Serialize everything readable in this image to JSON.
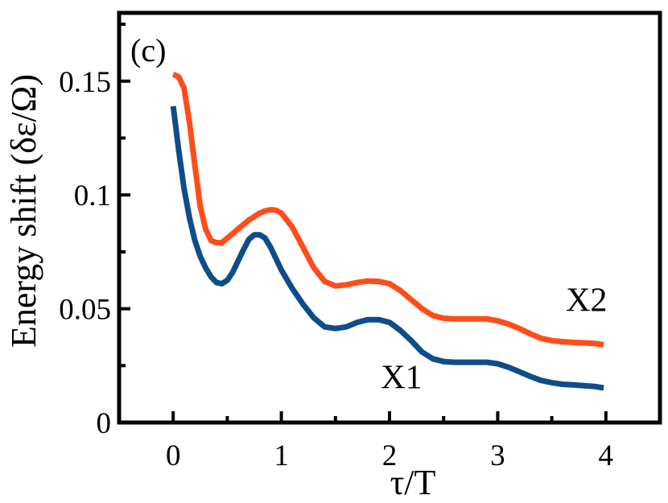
{
  "chart_data": {
    "type": "line",
    "panel_label": "(c)",
    "xlabel": "τ/T",
    "ylabel": "Energy shift (δε/Ω)",
    "xlim": [
      -0.5,
      4.5
    ],
    "ylim": [
      0,
      0.18
    ],
    "xticks": [
      0,
      1,
      2,
      3,
      4
    ],
    "xtick_labels": [
      "0",
      "1",
      "2",
      "3",
      "4"
    ],
    "yticks": [
      0,
      0.05,
      0.1,
      0.15
    ],
    "ytick_labels": [
      "0",
      "0.05",
      "0.1",
      "0.15"
    ],
    "x_minor_step": 0.5,
    "y_minor_step": 0.025,
    "grid": false,
    "legend": "none (series labeled inline)",
    "series": [
      {
        "name": "X2",
        "color": "#ff4d1a",
        "label_at": [
          3.63,
          0.049
        ],
        "x": [
          0.0,
          0.05,
          0.1,
          0.15,
          0.2,
          0.25,
          0.3,
          0.35,
          0.4,
          0.45,
          0.5,
          0.55,
          0.6,
          0.65,
          0.7,
          0.75,
          0.8,
          0.85,
          0.9,
          0.95,
          1.0,
          1.1,
          1.2,
          1.3,
          1.4,
          1.5,
          1.6,
          1.7,
          1.8,
          1.9,
          2.0,
          2.1,
          2.2,
          2.3,
          2.4,
          2.5,
          2.6,
          2.7,
          2.8,
          2.9,
          3.0,
          3.1,
          3.2,
          3.3,
          3.4,
          3.5,
          3.6,
          3.7,
          3.8,
          3.9,
          3.98
        ],
        "y": [
          0.153,
          0.152,
          0.147,
          0.132,
          0.113,
          0.095,
          0.085,
          0.08,
          0.079,
          0.079,
          0.081,
          0.083,
          0.085,
          0.087,
          0.089,
          0.0905,
          0.092,
          0.093,
          0.0935,
          0.0933,
          0.092,
          0.086,
          0.077,
          0.068,
          0.062,
          0.06,
          0.0605,
          0.0615,
          0.0622,
          0.062,
          0.061,
          0.058,
          0.054,
          0.05,
          0.047,
          0.0458,
          0.0455,
          0.0455,
          0.0455,
          0.0455,
          0.0447,
          0.0433,
          0.0413,
          0.039,
          0.037,
          0.036,
          0.0355,
          0.0352,
          0.035,
          0.0347,
          0.0342
        ]
      },
      {
        "name": "X1",
        "color": "#0f4c8a",
        "label_at": [
          1.92,
          0.015
        ],
        "x": [
          0.0,
          0.05,
          0.1,
          0.15,
          0.2,
          0.25,
          0.3,
          0.35,
          0.4,
          0.45,
          0.5,
          0.55,
          0.6,
          0.65,
          0.7,
          0.75,
          0.8,
          0.85,
          0.9,
          0.95,
          1.0,
          1.1,
          1.2,
          1.3,
          1.4,
          1.5,
          1.6,
          1.7,
          1.8,
          1.9,
          2.0,
          2.1,
          2.2,
          2.3,
          2.4,
          2.5,
          2.6,
          2.7,
          2.8,
          2.9,
          3.0,
          3.1,
          3.2,
          3.3,
          3.4,
          3.5,
          3.6,
          3.7,
          3.8,
          3.9,
          3.98
        ],
        "y": [
          0.139,
          0.12,
          0.103,
          0.09,
          0.08,
          0.073,
          0.068,
          0.064,
          0.0615,
          0.061,
          0.0625,
          0.066,
          0.071,
          0.076,
          0.0805,
          0.0825,
          0.0825,
          0.081,
          0.077,
          0.072,
          0.067,
          0.059,
          0.052,
          0.046,
          0.042,
          0.0413,
          0.042,
          0.044,
          0.0452,
          0.0452,
          0.044,
          0.0405,
          0.036,
          0.031,
          0.028,
          0.0268,
          0.0265,
          0.0265,
          0.0265,
          0.0265,
          0.0258,
          0.0243,
          0.0223,
          0.0203,
          0.0185,
          0.0175,
          0.0168,
          0.0165,
          0.0162,
          0.0158,
          0.0152
        ]
      }
    ]
  }
}
